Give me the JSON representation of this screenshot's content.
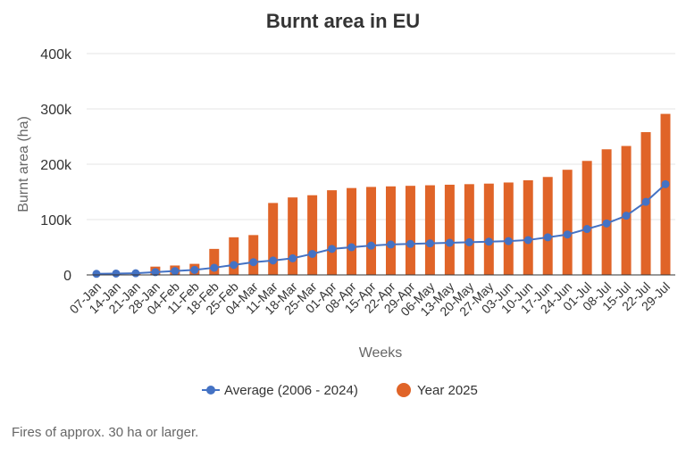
{
  "chart_data": {
    "type": "bar",
    "title": "Burnt area in EU",
    "xlabel": "Weeks",
    "ylabel": "Burnt area (ha)",
    "ylim": [
      0,
      400000
    ],
    "yticks": [
      {
        "value": 0,
        "label": "0"
      },
      {
        "value": 100000,
        "label": "100k"
      },
      {
        "value": 200000,
        "label": "200k"
      },
      {
        "value": 300000,
        "label": "300k"
      },
      {
        "value": 400000,
        "label": "400k"
      }
    ],
    "categories": [
      "07-Jan",
      "14-Jan",
      "21-Jan",
      "28-Jan",
      "04-Feb",
      "11-Feb",
      "18-Feb",
      "25-Feb",
      "04-Mar",
      "11-Mar",
      "18-Mar",
      "25-Mar",
      "01-Apr",
      "08-Apr",
      "15-Apr",
      "22-Apr",
      "29-Apr",
      "06-May",
      "13-May",
      "20-May",
      "27-May",
      "03-Jun",
      "10-Jun",
      "17-Jun",
      "24-Jun",
      "01-Jul",
      "08-Jul",
      "15-Jul",
      "22-Jul",
      "29-Jul"
    ],
    "series": [
      {
        "name": "Average (2006 - 2024)",
        "type": "line",
        "color": "#4472c4",
        "values": [
          2000,
          2500,
          3000,
          5000,
          7000,
          9000,
          13000,
          18000,
          23000,
          26000,
          30000,
          38000,
          47000,
          50000,
          53000,
          55000,
          56000,
          57000,
          58000,
          59000,
          60000,
          61000,
          63000,
          68000,
          73000,
          83000,
          93000,
          107000,
          132000,
          164000
        ]
      },
      {
        "name": "Year 2025",
        "type": "bar",
        "color": "#e06428",
        "values": [
          1000,
          1500,
          2000,
          15000,
          17000,
          20000,
          47000,
          68000,
          72000,
          130000,
          140000,
          144000,
          153000,
          157000,
          159000,
          160000,
          161000,
          162000,
          163000,
          164000,
          165000,
          167000,
          171000,
          177000,
          190000,
          206000,
          227000,
          233000,
          258000,
          291000
        ]
      }
    ],
    "legend_position": "bottom",
    "grid": true
  },
  "footnote": "Fires of approx. 30 ha or larger."
}
